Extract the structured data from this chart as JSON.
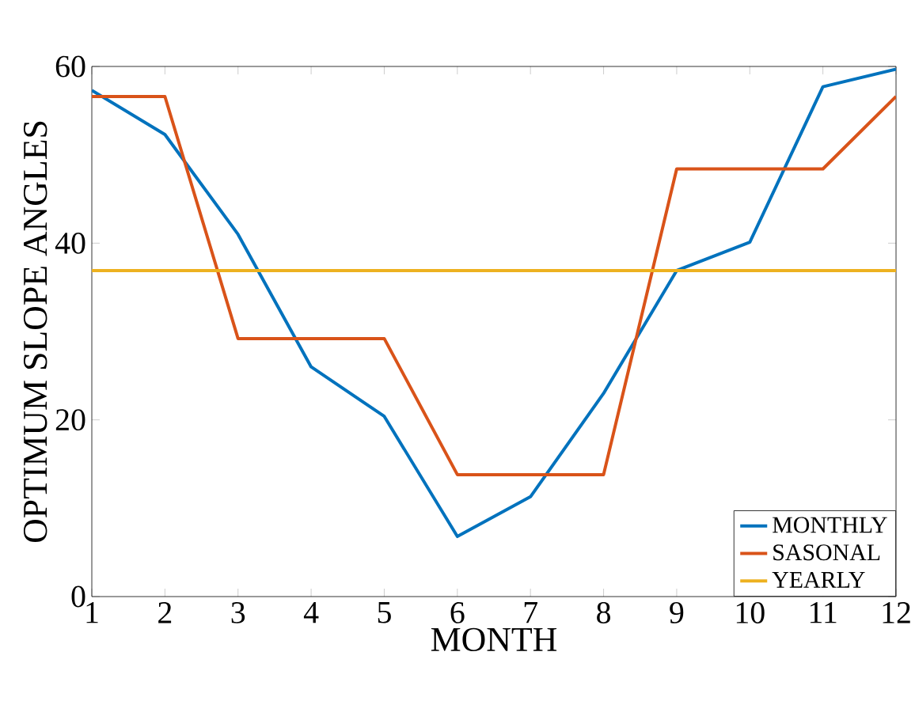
{
  "chart_data": {
    "type": "line",
    "xlabel": "MONTH",
    "ylabel": "OPTIMUM SLOPE  ANGLES",
    "xlim": [
      1,
      12
    ],
    "xticks": [
      1,
      2,
      3,
      4,
      5,
      6,
      7,
      8,
      9,
      10,
      11,
      12
    ],
    "ylim": [
      0,
      60
    ],
    "yticks": [
      0,
      20,
      40,
      60
    ],
    "x": [
      1,
      2,
      3,
      4,
      5,
      6,
      7,
      8,
      9,
      10,
      11,
      12
    ],
    "series": [
      {
        "name": "MONTHLY",
        "color": "#0072bd",
        "values": [
          57.3,
          52.3,
          41,
          26,
          20.4,
          6.8,
          11.3,
          23,
          36.9,
          40.1,
          57.7,
          59.7
        ]
      },
      {
        "name": "SASONAL",
        "color": "#d95319",
        "values": [
          56.6,
          56.6,
          29.2,
          29.2,
          29.2,
          13.8,
          13.8,
          13.8,
          48.4,
          48.4,
          48.4,
          56.6
        ]
      },
      {
        "name": "YEARLY",
        "color": "#edb120",
        "x": [
          1,
          12
        ],
        "values": [
          36.9,
          36.9
        ]
      }
    ],
    "legend": "bottom right",
    "grid": false,
    "line_style": "solid",
    "marker": "none"
  }
}
